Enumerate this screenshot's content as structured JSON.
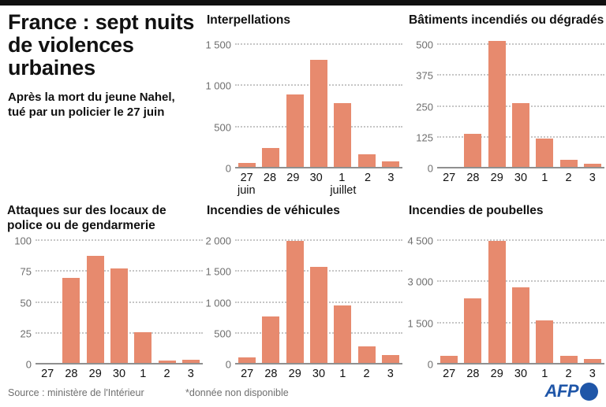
{
  "header": {
    "title_lines": [
      "France : sept nuits",
      "de violences",
      "urbaines"
    ],
    "subtitle_lines": [
      "Après la mort du jeune Nahel,",
      "tué par un policier le 27 juin"
    ]
  },
  "footer": {
    "source": "Source : ministère de l'Intérieur",
    "note": "*donnée non disponible",
    "logo": "AFP"
  },
  "colors": {
    "bar": "#e78a6e",
    "grid": "#c6c6c6",
    "axis": "#8f8f8f",
    "tick_label": "#6e6e6e",
    "text": "#111111",
    "muted": "#6f6f6f",
    "afp_blue": "#1f56a8",
    "top_bar": "#101010"
  },
  "chart_data": [
    {
      "id": "interpellations",
      "type": "bar",
      "title": "Interpellations",
      "categories": [
        "27",
        "28",
        "29",
        "30",
        "1",
        "2",
        "3"
      ],
      "sub_labels": {
        "0": "juin",
        "4": "juillet"
      },
      "values": [
        70,
        250,
        895,
        1320,
        790,
        175,
        90
      ],
      "ymax": 1500,
      "ticks": [
        {
          "value": 0,
          "label": "0"
        },
        {
          "value": 500,
          "label": "500"
        },
        {
          "value": 1000,
          "label": "1 000"
        },
        {
          "value": 1500,
          "label": "1 500"
        }
      ],
      "grid": "dotted",
      "legend": "none"
    },
    {
      "id": "batiments",
      "type": "bar",
      "title": "Bâtiments incendiés ou dégradés",
      "categories": [
        "27",
        "28",
        "29",
        "30",
        "1",
        "2",
        "3"
      ],
      "sub_labels": {},
      "values": [
        5,
        140,
        515,
        265,
        120,
        35,
        20
      ],
      "ymax": 500,
      "ticks": [
        {
          "value": 0,
          "label": "0"
        },
        {
          "value": 125,
          "label": "125"
        },
        {
          "value": 250,
          "label": "250"
        },
        {
          "value": 375,
          "label": "375"
        },
        {
          "value": 500,
          "label": "500"
        }
      ],
      "grid": "dotted",
      "legend": "none"
    },
    {
      "id": "attaques-police-gendarmerie",
      "type": "bar",
      "title": "Attaques sur des locaux de police ou de gendarmerie",
      "categories": [
        "27",
        "28",
        "29",
        "30",
        "1",
        "2",
        "3"
      ],
      "sub_labels": {},
      "values": [
        null,
        70,
        88,
        78,
        26,
        3,
        4
      ],
      "note": "valeur du 27 non disponible",
      "ymax": 100,
      "ticks": [
        {
          "value": 0,
          "label": "0"
        },
        {
          "value": 25,
          "label": "25"
        },
        {
          "value": 50,
          "label": "50"
        },
        {
          "value": 75,
          "label": "75"
        },
        {
          "value": 100,
          "label": "100"
        }
      ],
      "grid": "dotted",
      "legend": "none"
    },
    {
      "id": "incendies-vehicules",
      "type": "bar",
      "title": "Incendies de véhicules",
      "categories": [
        "27",
        "28",
        "29",
        "30",
        "1",
        "2",
        "3"
      ],
      "sub_labels": {},
      "values": [
        110,
        780,
        2000,
        1580,
        950,
        290,
        150
      ],
      "ymax": 2000,
      "ticks": [
        {
          "value": 0,
          "label": "0"
        },
        {
          "value": 500,
          "label": "500"
        },
        {
          "value": 1000,
          "label": "1 000"
        },
        {
          "value": 1500,
          "label": "1 500"
        },
        {
          "value": 2000,
          "label": "2 000"
        }
      ],
      "grid": "dotted",
      "legend": "none"
    },
    {
      "id": "incendies-poubelles",
      "type": "bar",
      "title": "Incendies de poubelles",
      "categories": [
        "27",
        "28",
        "29",
        "30",
        "1",
        "2",
        "3"
      ],
      "sub_labels": {},
      "values": [
        320,
        2400,
        4500,
        2800,
        1600,
        330,
        190
      ],
      "ymax": 4500,
      "ticks": [
        {
          "value": 0,
          "label": "0"
        },
        {
          "value": 1500,
          "label": "1 500"
        },
        {
          "value": 3000,
          "label": "3 000"
        },
        {
          "value": 4500,
          "label": "4 500"
        }
      ],
      "grid": "dotted",
      "legend": "none"
    }
  ]
}
